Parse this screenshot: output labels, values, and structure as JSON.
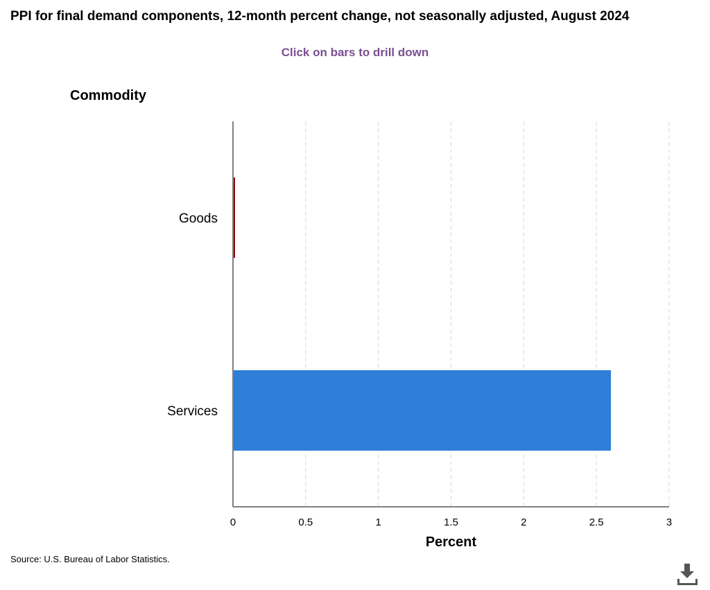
{
  "title": "PPI for final demand components, 12-month percent change, not seasonally adjusted, August 2024",
  "subtitle": "Click on bars to drill down",
  "source": "Source: U.S. Bureau of Labor Statistics.",
  "download_icon": "download-icon",
  "colors": {
    "goods": "#8b0a0a",
    "services": "#2f7ed8",
    "subtitle": "#7b4f91",
    "grid": "#d9d9d9",
    "axis": "#808080"
  },
  "chart_data": {
    "type": "bar",
    "orientation": "horizontal",
    "categories": [
      "Goods",
      "Services"
    ],
    "values": [
      0.0,
      2.6
    ],
    "bar_colors": [
      "#8b0a0a",
      "#2f7ed8"
    ],
    "title": "PPI for final demand components, 12-month percent change, not seasonally adjusted, August 2024",
    "subtitle": "Click on bars to drill down",
    "xlabel": "Percent",
    "ylabel": "Commodity",
    "xlim": [
      0,
      3
    ],
    "xticks": [
      0,
      0.5,
      1,
      1.5,
      2,
      2.5,
      3
    ],
    "xtick_labels": [
      "0",
      "0.5",
      "1",
      "1.5",
      "2",
      "2.5",
      "3"
    ],
    "grid": "vertical dashed",
    "legend": "none"
  }
}
